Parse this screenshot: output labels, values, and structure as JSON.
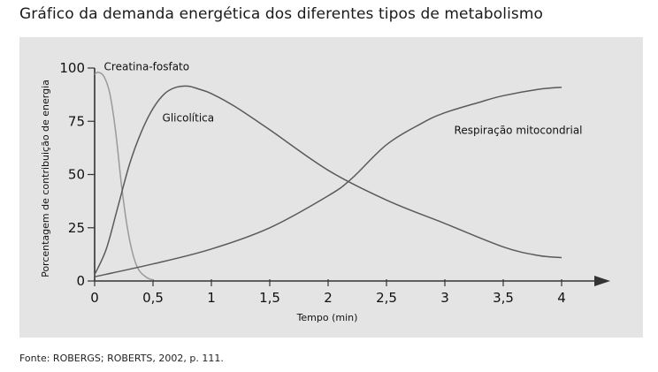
{
  "title": "Gráfico da demanda energética dos diferentes tipos de metabolismo",
  "source": "Fonte: ROBERGS; ROBERTS, 2002, p. 111.",
  "chart_data": {
    "type": "line",
    "xlabel": "Tempo (min)",
    "ylabel": "Porcentagem de contribuição de energia",
    "xlim": [
      0,
      4
    ],
    "ylim": [
      0,
      100
    ],
    "x_ticks": [
      {
        "value": 0,
        "label": "0"
      },
      {
        "value": 0.5,
        "label": "0,5"
      },
      {
        "value": 1,
        "label": "1"
      },
      {
        "value": 1.5,
        "label": "1,5"
      },
      {
        "value": 2,
        "label": "2"
      },
      {
        "value": 2.5,
        "label": "2,5"
      },
      {
        "value": 3,
        "label": "3"
      },
      {
        "value": 3.5,
        "label": "3,5"
      },
      {
        "value": 4,
        "label": "4"
      }
    ],
    "y_ticks": [
      {
        "value": 0,
        "label": "0"
      },
      {
        "value": 25,
        "label": "25"
      },
      {
        "value": 50,
        "label": "50"
      },
      {
        "value": 75,
        "label": "75"
      },
      {
        "value": 100,
        "label": "100"
      }
    ],
    "grid": false,
    "series": [
      {
        "name": "Creatina-fosfato",
        "color": "#9a9a9a",
        "x": [
          0,
          0.03,
          0.08,
          0.13,
          0.18,
          0.23,
          0.28,
          0.33,
          0.38,
          0.45,
          0.5
        ],
        "y": [
          97,
          98,
          96,
          88,
          70,
          45,
          25,
          12,
          5,
          1.5,
          0.5
        ]
      },
      {
        "name": "Glicolítica",
        "color": "#5a5a5a",
        "x": [
          0,
          0.1,
          0.2,
          0.3,
          0.4,
          0.5,
          0.6,
          0.7,
          0.8,
          0.9,
          1.0,
          1.2,
          1.5,
          2.0,
          2.5,
          3.0,
          3.5,
          3.8,
          4.0
        ],
        "y": [
          3,
          15,
          35,
          55,
          70,
          81,
          88,
          91,
          91.5,
          90,
          88,
          82,
          71,
          52,
          38,
          27,
          16,
          12,
          11
        ]
      },
      {
        "name": "Respiração mitocondrial",
        "color": "#5a5a5a",
        "x": [
          0,
          0.5,
          1.0,
          1.5,
          2.0,
          2.2,
          2.5,
          2.8,
          3.0,
          3.3,
          3.5,
          3.8,
          4.0
        ],
        "y": [
          2,
          8,
          15,
          25,
          40,
          48,
          64,
          74,
          79,
          84,
          87,
          90,
          91
        ]
      }
    ],
    "annotations": [
      {
        "series": 0,
        "text": "Creatina-fosfato",
        "x": 0.08,
        "y": 99
      },
      {
        "series": 1,
        "text": "Glicolítica",
        "x": 0.58,
        "y": 75
      },
      {
        "series": 2,
        "text": "Respiração mitocondrial",
        "x": 3.08,
        "y": 69
      }
    ]
  }
}
